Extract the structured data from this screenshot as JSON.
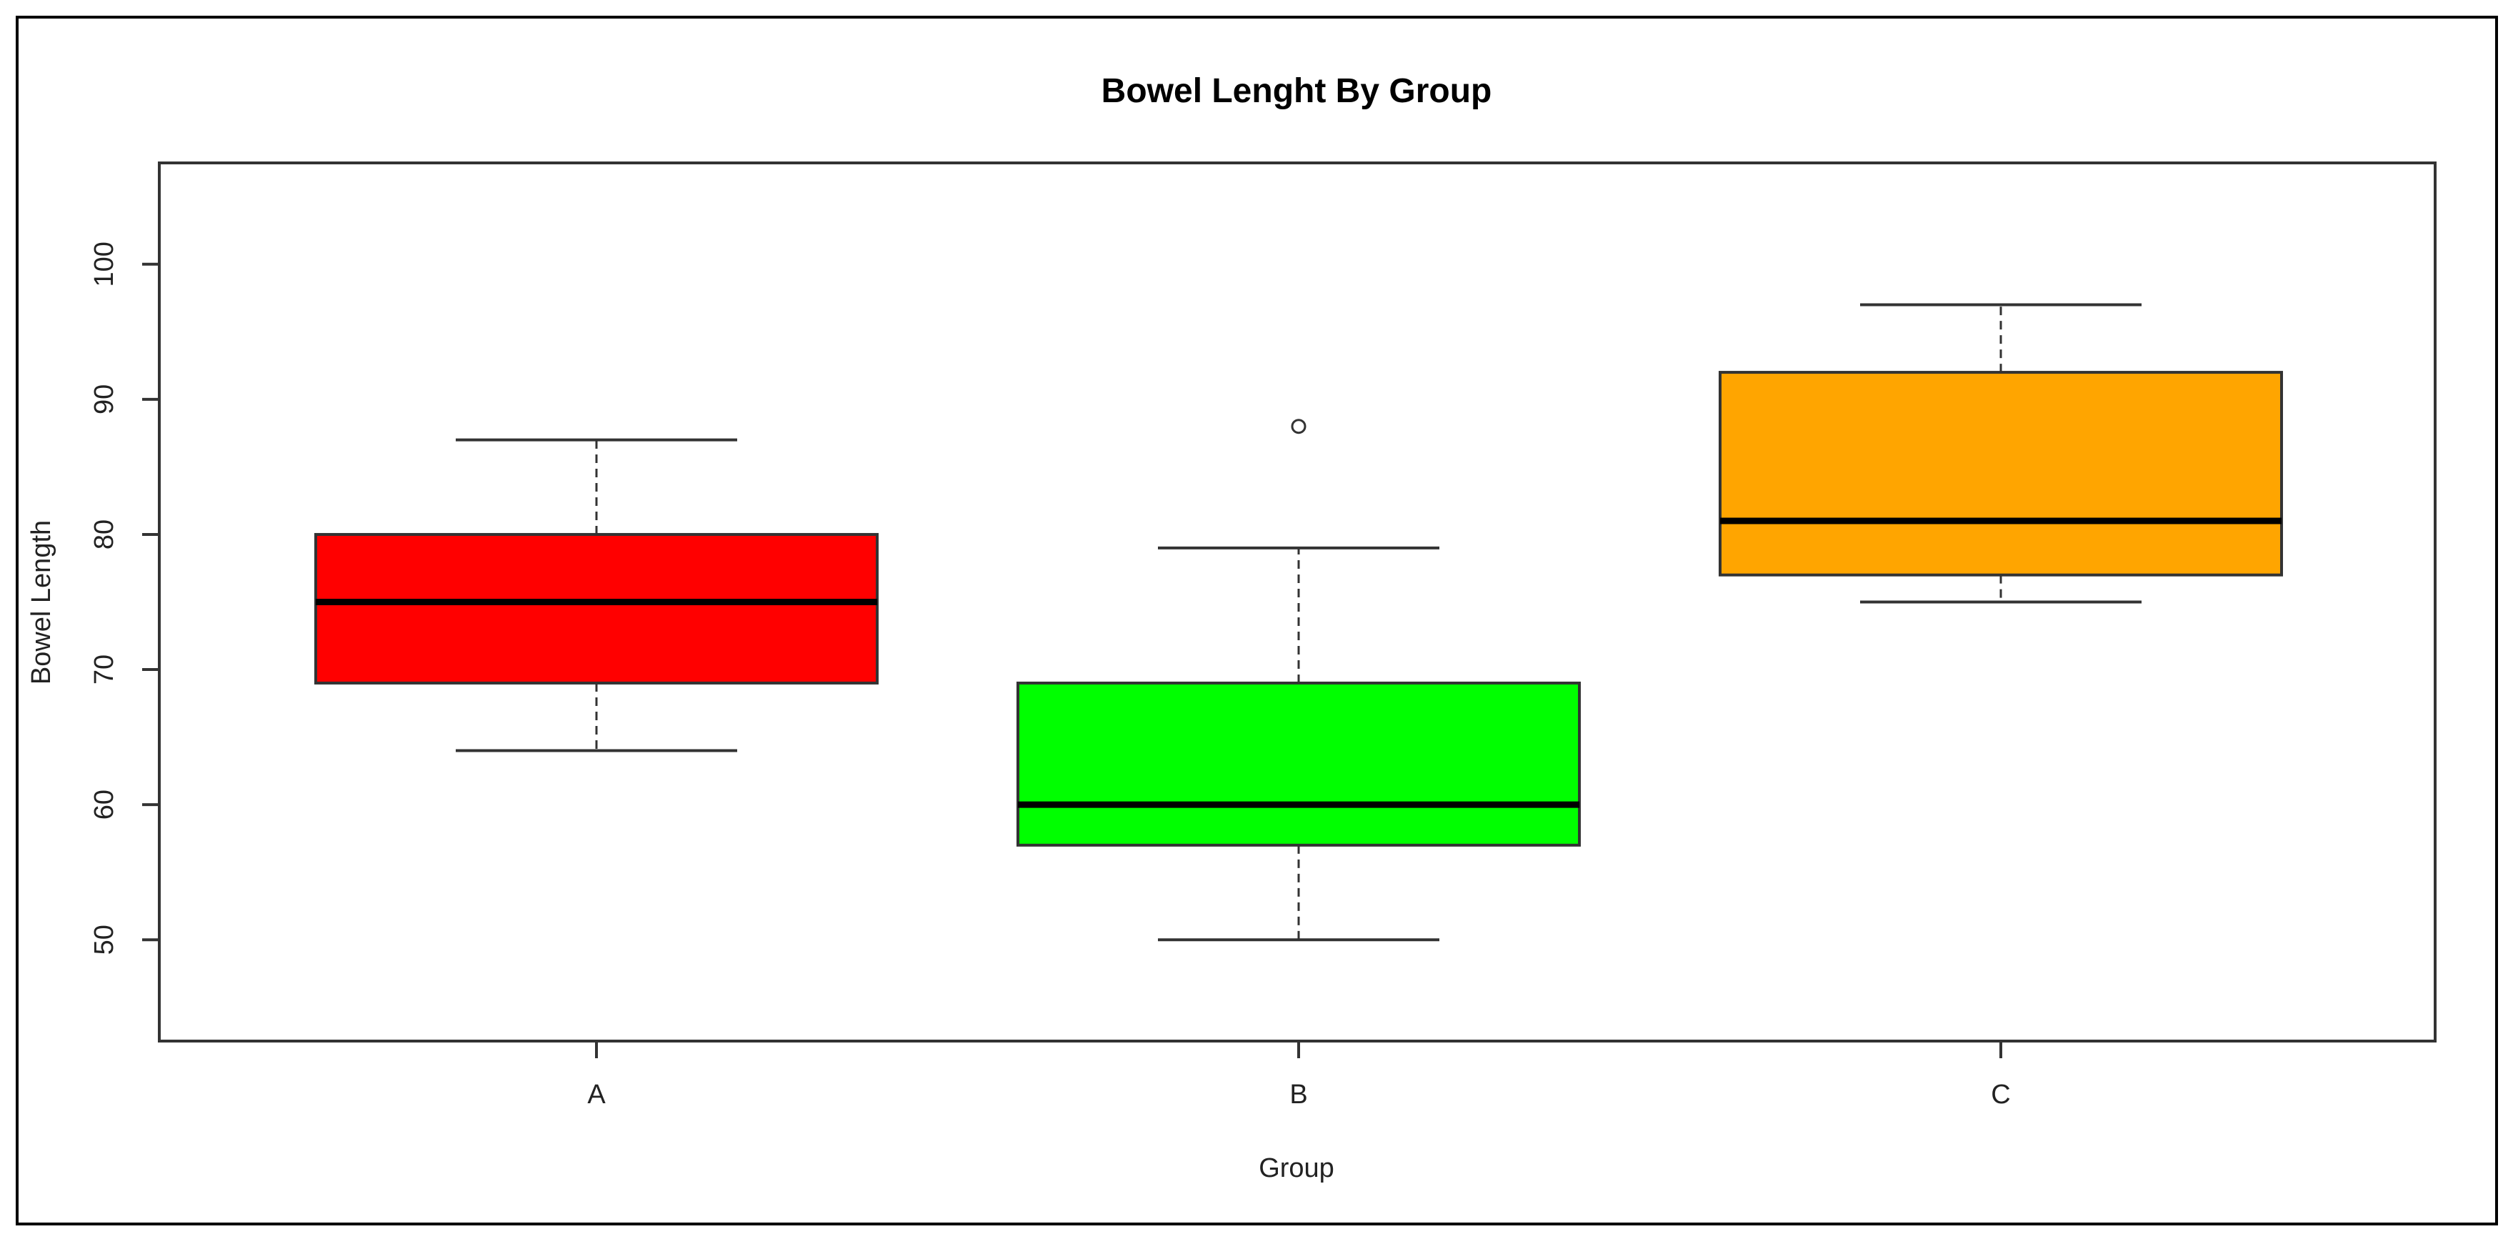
{
  "chart_data": {
    "type": "box",
    "title": "Bowel Lenght By Group",
    "xlabel": "Group",
    "ylabel": "Bowel Length",
    "ylim": [
      42.5,
      107.5
    ],
    "yticks": [
      50,
      60,
      70,
      80,
      90,
      100
    ],
    "ytick_labels": [
      "50",
      "60",
      "70",
      "80",
      "90",
      "100"
    ],
    "grid": false,
    "legend": "none",
    "categories": [
      "A",
      "B",
      "C"
    ],
    "boxes": [
      {
        "category": "A",
        "whisker_low": 64,
        "q1": 69,
        "median": 75,
        "q3": 80,
        "whisker_high": 87,
        "outliers": [],
        "color": "#ff0000"
      },
      {
        "category": "B",
        "whisker_low": 50,
        "q1": 57,
        "median": 60,
        "q3": 69,
        "whisker_high": 79,
        "outliers": [
          88
        ],
        "color": "#00ff00"
      },
      {
        "category": "C",
        "whisker_low": 75,
        "q1": 77,
        "median": 81,
        "q3": 92,
        "whisker_high": 97,
        "outliers": [],
        "color": "#ffa500"
      }
    ]
  }
}
